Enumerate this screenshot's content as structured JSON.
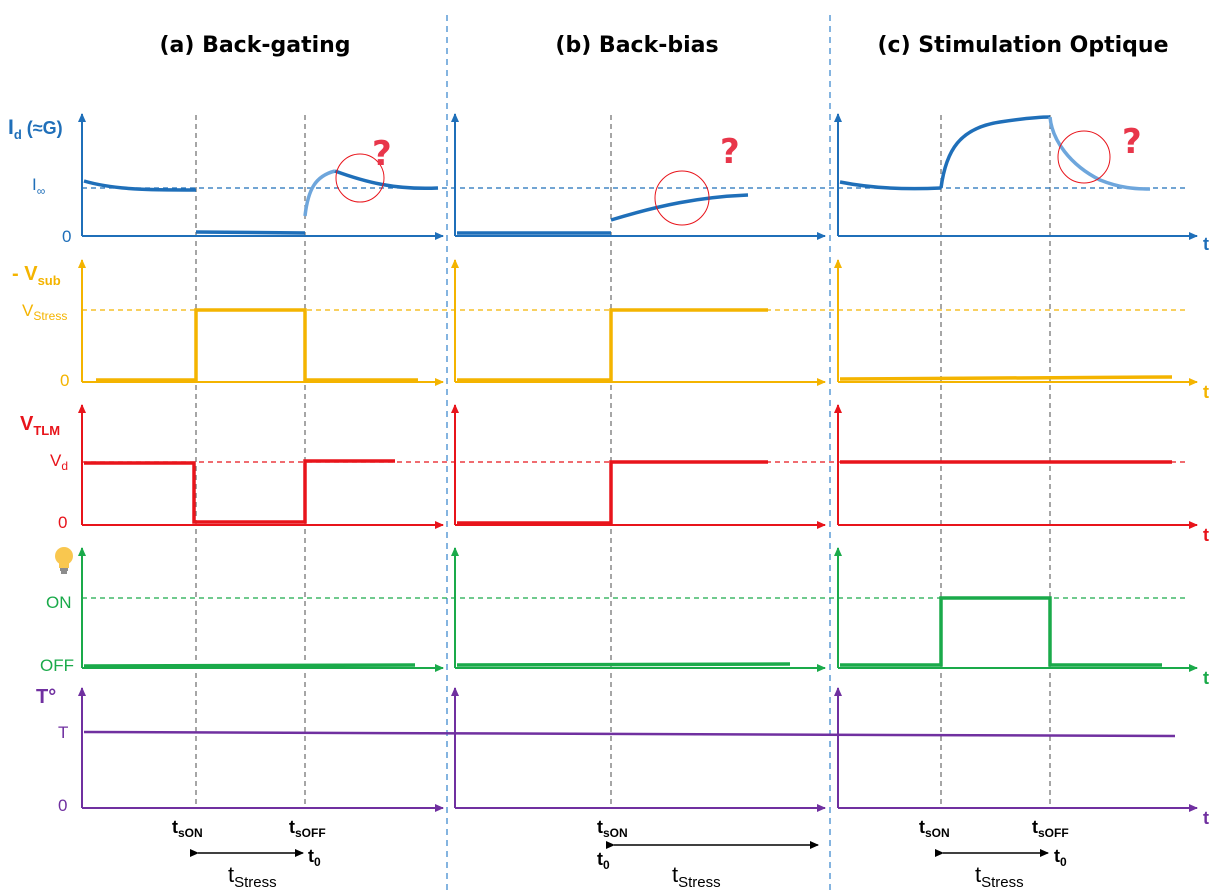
{
  "titles": {
    "a": "(a) Back-gating",
    "b": "(b) Back-bias",
    "c": "(c) Stimulation Optique"
  },
  "rows": {
    "id": {
      "label_main": "I",
      "label_sub": "d",
      "label_tail": " (≈G)",
      "inf_main": "I",
      "inf_sub": "∞",
      "zero": "0",
      "color": "#1f6fb9"
    },
    "vsub": {
      "label_main": "- V",
      "label_sub": "sub",
      "stress_main": "V",
      "stress_sub": "Stress",
      "zero": "0",
      "color": "#f4b400"
    },
    "vtlm": {
      "label_main": "V",
      "label_sub": "TLM",
      "vd_main": "V",
      "vd_sub": "d",
      "zero": "0",
      "color": "#e8141b"
    },
    "light": {
      "icon": "lightbulb-icon",
      "on": "ON",
      "off": "OFF",
      "color": "#1aaa4a"
    },
    "temp": {
      "label": "T°",
      "t": "T",
      "zero": "0",
      "color": "#7030a0"
    }
  },
  "axis_t": "t",
  "question_mark": "?",
  "timing": {
    "ts_main": "t",
    "son_sub": "sON",
    "soff_sub": "sOFF",
    "t0_main": "t",
    "t0_sub": "0",
    "stress_main": "t",
    "stress_sub": "Stress"
  },
  "colors": {
    "id_blue": "#1f6fb9",
    "id_blue_light": "#6ea6dc",
    "vsub_yellow": "#f4b400",
    "vtlm_red": "#e8141b",
    "light_green": "#1aaa4a",
    "temp_purple": "#7030a0",
    "question_red": "#e8364a",
    "separator": "#5b9bd5",
    "guide_gray": "#777777"
  }
}
